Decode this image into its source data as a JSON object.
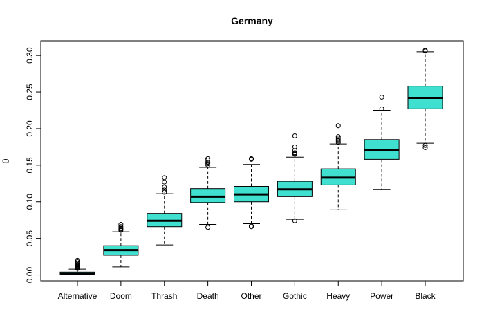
{
  "chart_data": {
    "type": "boxplot",
    "title": "Germany",
    "xlabel": "",
    "ylabel": "θ",
    "ylim": [
      -0.008,
      0.32
    ],
    "yticks": [
      0.0,
      0.05,
      0.1,
      0.15,
      0.2,
      0.25,
      0.3
    ],
    "ytick_labels": [
      "0.00",
      "0.05",
      "0.10",
      "0.15",
      "0.20",
      "0.25",
      "0.30"
    ],
    "grid": false,
    "box_fill_color": "#40E0D0",
    "categories": [
      "Alternative",
      "Doom",
      "Thrash",
      "Death",
      "Other",
      "Gothic",
      "Heavy",
      "Power",
      "Black"
    ],
    "boxes": [
      {
        "category": "Alternative",
        "whisker_low": 0.0,
        "q1": 0.001,
        "median": 0.002,
        "q3": 0.004,
        "whisker_high": 0.008,
        "outliers": [
          0.009,
          0.01,
          0.011,
          0.012,
          0.013,
          0.014,
          0.016,
          0.018,
          0.02
        ]
      },
      {
        "category": "Doom",
        "whisker_low": 0.011,
        "q1": 0.027,
        "median": 0.034,
        "q3": 0.04,
        "whisker_high": 0.059,
        "outliers": [
          0.061,
          0.062,
          0.063,
          0.064,
          0.066,
          0.069
        ]
      },
      {
        "category": "Thrash",
        "whisker_low": 0.041,
        "q1": 0.066,
        "median": 0.074,
        "q3": 0.084,
        "whisker_high": 0.111,
        "outliers": [
          0.113,
          0.116,
          0.12,
          0.127,
          0.133
        ]
      },
      {
        "category": "Death",
        "whisker_low": 0.069,
        "q1": 0.099,
        "median": 0.107,
        "q3": 0.118,
        "whisker_high": 0.147,
        "outliers": [
          0.065,
          0.15,
          0.152,
          0.154,
          0.157,
          0.159
        ]
      },
      {
        "category": "Other",
        "whisker_low": 0.07,
        "q1": 0.1,
        "median": 0.11,
        "q3": 0.121,
        "whisker_high": 0.151,
        "outliers": [
          0.066,
          0.067,
          0.158,
          0.159
        ]
      },
      {
        "category": "Gothic",
        "whisker_low": 0.076,
        "q1": 0.107,
        "median": 0.117,
        "q3": 0.128,
        "whisker_high": 0.161,
        "outliers": [
          0.074,
          0.165,
          0.166,
          0.167,
          0.17,
          0.175,
          0.19
        ]
      },
      {
        "category": "Heavy",
        "whisker_low": 0.089,
        "q1": 0.123,
        "median": 0.133,
        "q3": 0.145,
        "whisker_high": 0.179,
        "outliers": [
          0.181,
          0.183,
          0.185,
          0.187,
          0.189,
          0.204
        ]
      },
      {
        "category": "Power",
        "whisker_low": 0.117,
        "q1": 0.158,
        "median": 0.171,
        "q3": 0.185,
        "whisker_high": 0.225,
        "outliers": [
          0.227,
          0.243
        ]
      },
      {
        "category": "Black",
        "whisker_low": 0.18,
        "q1": 0.227,
        "median": 0.242,
        "q3": 0.258,
        "whisker_high": 0.305,
        "outliers": [
          0.174,
          0.177,
          0.306,
          0.307
        ]
      }
    ]
  }
}
